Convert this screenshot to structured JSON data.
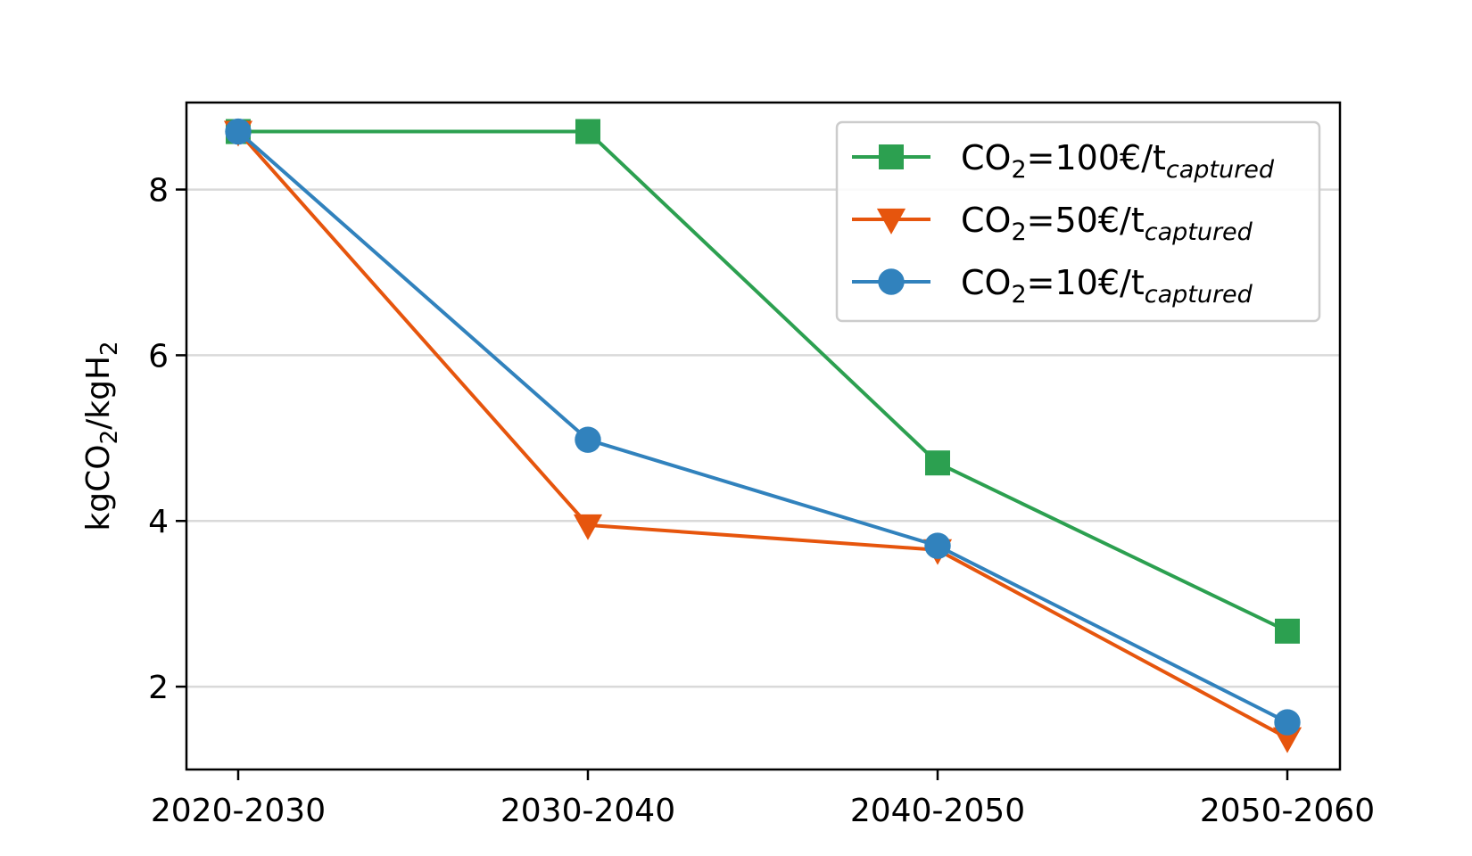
{
  "chart_data": {
    "type": "line",
    "title": "",
    "xlabel": "",
    "ylabel": {
      "main": "kgCO",
      "sub1": "2",
      "mid": "/kgH",
      "sub2": "2"
    },
    "categories": [
      "2020-2030",
      "2030-2040",
      "2040-2050",
      "2050-2060"
    ],
    "ylim": [
      1.0,
      9.05
    ],
    "yticks": [
      2,
      4,
      6,
      8
    ],
    "ytick_labels": [
      "2",
      "4",
      "6",
      "8"
    ],
    "grid": "horizontal",
    "legend_position": "top-right",
    "series": [
      {
        "key": "co2-100",
        "legend": {
          "pre": "CO",
          "sub": "2",
          "mid": "=100€/t",
          "subscript": "captured"
        },
        "color": "#2ca050",
        "marker": "square",
        "values": [
          8.7,
          8.7,
          4.7,
          2.67
        ]
      },
      {
        "key": "co2-50",
        "legend": {
          "pre": "CO",
          "sub": "2",
          "mid": "=50€/t",
          "subscript": "captured"
        },
        "color": "#e6550d",
        "marker": "triangle-down",
        "values": [
          8.7,
          3.95,
          3.65,
          1.38
        ]
      },
      {
        "key": "co2-10",
        "legend": {
          "pre": "CO",
          "sub": "2",
          "mid": "=10€/t",
          "subscript": "captured"
        },
        "color": "#3182bd",
        "marker": "circle",
        "values": [
          8.7,
          4.98,
          3.7,
          1.57
        ]
      }
    ]
  }
}
